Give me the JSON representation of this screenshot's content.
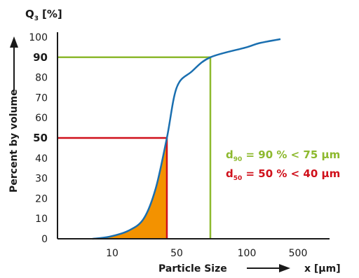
{
  "chart_data": {
    "type": "line",
    "title": "",
    "xlabel": "Particle Size",
    "xlabel_unit": "x [µm]",
    "ylabel": "Percent by volume",
    "ylabel_unit": {
      "symbol": "Q",
      "subscript": "3",
      "unit": "[%]"
    },
    "ylim": [
      0,
      100
    ],
    "y_ticks": [
      "0",
      "10",
      "20",
      "30",
      "40",
      "50",
      "60",
      "70",
      "80",
      "90",
      "100"
    ],
    "y_highlight": {
      "d90": 90,
      "d50": 50
    },
    "x_ticks": [
      {
        "label": "10",
        "value": 10
      },
      {
        "label": "50",
        "value": 50
      },
      {
        "label": "100",
        "value": 100
      },
      {
        "label": "500",
        "value": 500
      }
    ],
    "series": [
      {
        "values": [
          {
            "x": 5,
            "y": 0
          },
          {
            "x": 9,
            "y": 1
          },
          {
            "x": 15,
            "y": 4
          },
          {
            "x": 22,
            "y": 10
          },
          {
            "x": 30,
            "y": 25
          },
          {
            "x": 40,
            "y": 50
          },
          {
            "x": 50,
            "y": 75
          },
          {
            "x": 60,
            "y": 83
          },
          {
            "x": 75,
            "y": 90
          },
          {
            "x": 100,
            "y": 95
          },
          {
            "x": 150,
            "y": 97
          },
          {
            "x": 300,
            "y": 99
          }
        ]
      }
    ],
    "markers": [
      {
        "id": "d90",
        "x": 75,
        "y": 90,
        "color": "#8db92e"
      },
      {
        "id": "d50",
        "x": 40,
        "y": 50,
        "color": "#d0101b"
      }
    ],
    "fill_below": {
      "x_max": 40,
      "color": "#f39200"
    },
    "annotations": [
      {
        "id": "d90",
        "pre": "d",
        "sub": "90",
        "text": " = 90 % < 75 µm",
        "color": "#8db92e"
      },
      {
        "id": "d50",
        "pre": "d",
        "sub": "50",
        "text": " = 50 % < 40 µm",
        "color": "#d0101b"
      }
    ],
    "colors": {
      "curve": "#1a6fb0",
      "axis": "#1a1a1a",
      "d90": "#8db92e",
      "d50": "#d0101b",
      "fill": "#f39200"
    },
    "grid": false,
    "legend": "none"
  }
}
